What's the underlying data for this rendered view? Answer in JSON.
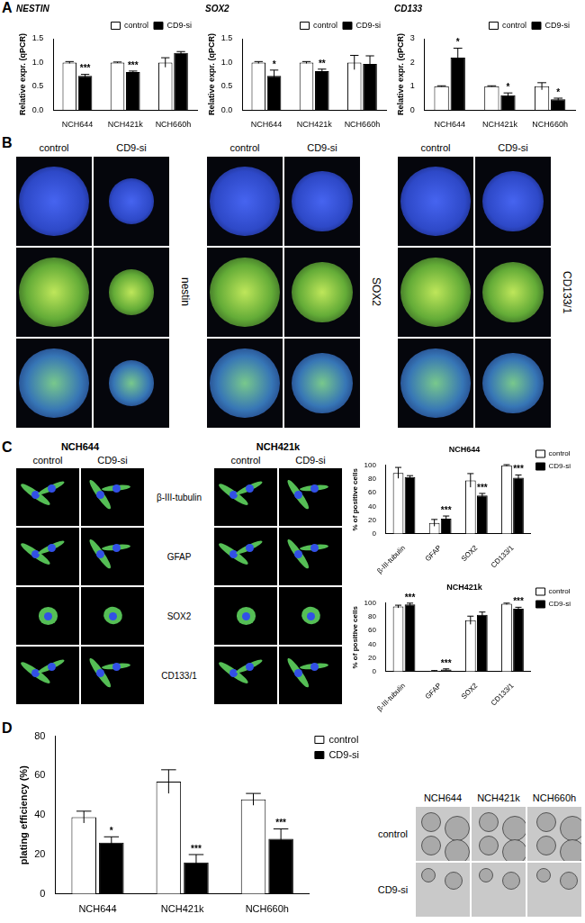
{
  "panel_labels": [
    "A",
    "B",
    "C",
    "D"
  ],
  "chart_data": [
    {
      "type": "bar",
      "title": "NESTIN",
      "y_label": "Relative expr. (qPCR)",
      "categories": [
        "NCH644",
        "NCH421k",
        "NCH660h"
      ],
      "series": [
        {
          "name": "control",
          "color": "#ffffff",
          "values": [
            1.0,
            1.0,
            1.0
          ],
          "errors": [
            0.02,
            0.01,
            0.1
          ],
          "significance": [
            null,
            null,
            null
          ]
        },
        {
          "name": "CD9-si",
          "color": "#000000",
          "values": [
            0.72,
            0.8,
            1.2
          ],
          "errors": [
            0.03,
            0.02,
            0.03
          ],
          "significance": [
            "***",
            "***",
            null
          ]
        }
      ],
      "ylim": [
        0,
        1.5
      ],
      "yticks": [
        {
          "value": 0,
          "label": "0.0"
        },
        {
          "value": 0.5,
          "label": "0.5"
        },
        {
          "value": 1,
          "label": "1.0"
        },
        {
          "value": 1.5,
          "label": "1.5"
        }
      ],
      "grid": false,
      "legend": "top-right"
    },
    {
      "type": "bar",
      "title": "SOX2",
      "y_label": "Relative expr. (qPCR)",
      "categories": [
        "NCH644",
        "NCH421k",
        "NCH660h"
      ],
      "series": [
        {
          "name": "control",
          "color": "#ffffff",
          "values": [
            1.0,
            1.0,
            1.0
          ],
          "errors": [
            0.02,
            0.02,
            0.15
          ],
          "significance": [
            null,
            null,
            null
          ]
        },
        {
          "name": "CD9-si",
          "color": "#000000",
          "values": [
            0.72,
            0.82,
            0.97
          ],
          "errors": [
            0.12,
            0.04,
            0.17
          ],
          "significance": [
            "*",
            "**",
            null
          ]
        }
      ],
      "ylim": [
        0,
        1.5
      ],
      "yticks": [
        {
          "value": 0,
          "label": "0.0"
        },
        {
          "value": 0.5,
          "label": "0.5"
        },
        {
          "value": 1,
          "label": "1.0"
        },
        {
          "value": 1.5,
          "label": "1.5"
        }
      ],
      "grid": false,
      "legend": "top-right"
    },
    {
      "type": "bar",
      "title": "CD133",
      "y_label": "Relative expr. (qPCR)",
      "categories": [
        "NCH644",
        "NCH421k",
        "NCH660h"
      ],
      "series": [
        {
          "name": "control",
          "color": "#ffffff",
          "values": [
            1.0,
            1.0,
            1.0
          ],
          "errors": [
            0.02,
            0.02,
            0.15
          ],
          "significance": [
            null,
            null,
            null
          ]
        },
        {
          "name": "CD9-si",
          "color": "#000000",
          "values": [
            2.2,
            0.62,
            0.45
          ],
          "errors": [
            0.4,
            0.1,
            0.05
          ],
          "significance": [
            "*",
            "*",
            "*"
          ]
        }
      ],
      "ylim": [
        0,
        3
      ],
      "yticks": [
        0,
        1,
        2,
        3
      ],
      "grid": false,
      "legend": "top-right"
    },
    {
      "type": "bar",
      "title": "NCH644",
      "y_label": "% of positive cells",
      "categories": [
        "β-III-tubulin",
        "GFAP",
        "SOX2",
        "CD133/1"
      ],
      "series": [
        {
          "name": "control",
          "color": "#ffffff",
          "values": [
            89,
            16,
            78,
            100
          ],
          "errors": [
            8,
            5,
            10,
            1
          ],
          "significance": [
            null,
            null,
            null,
            null
          ]
        },
        {
          "name": "CD9-si",
          "color": "#000000",
          "values": [
            83,
            22,
            56,
            82
          ],
          "errors": [
            2,
            4,
            3,
            4
          ],
          "significance": [
            null,
            "***",
            "***",
            "***"
          ]
        }
      ],
      "ylim": [
        0,
        100
      ],
      "yticks": [
        0,
        20,
        40,
        60,
        80,
        100
      ],
      "grid": false,
      "legend": "right"
    },
    {
      "type": "bar",
      "title": "NCH421k",
      "y_label": "% of positive cells",
      "categories": [
        "β-III-tubulin",
        "GFAP",
        "SOX2",
        "CD133/1"
      ],
      "series": [
        {
          "name": "control",
          "color": "#ffffff",
          "values": [
            95,
            1,
            75,
            99
          ],
          "errors": [
            2,
            0.5,
            6,
            1
          ],
          "significance": [
            null,
            null,
            null,
            null
          ]
        },
        {
          "name": "CD9-si",
          "color": "#000000",
          "values": [
            98,
            3,
            83,
            92
          ],
          "errors": [
            2,
            1,
            4,
            2
          ],
          "significance": [
            "***",
            "***",
            null,
            "***"
          ]
        }
      ],
      "ylim": [
        0,
        100
      ],
      "yticks": [
        0,
        20,
        40,
        60,
        80,
        100
      ],
      "grid": false,
      "legend": "right"
    },
    {
      "type": "bar",
      "y_label": "plating efficiency (%)",
      "categories": [
        "NCH644",
        "NCH421k",
        "NCH660h"
      ],
      "series": [
        {
          "name": "control",
          "color": "#ffffff",
          "values": [
            39,
            57,
            48
          ],
          "errors": [
            3,
            6,
            3
          ],
          "significance": [
            null,
            null,
            null
          ]
        },
        {
          "name": "CD9-si",
          "color": "#000000",
          "values": [
            26,
            16,
            28
          ],
          "errors": [
            3,
            4,
            5
          ],
          "significance": [
            "*",
            "***",
            "***"
          ]
        }
      ],
      "ylim": [
        0,
        80
      ],
      "yticks": [
        0,
        20,
        40,
        60,
        80
      ],
      "grid": false,
      "legend": "right"
    }
  ],
  "image_panels": {
    "B": {
      "groups": [
        {
          "columns": [
            "control",
            "CD9-si"
          ],
          "label": "nestin"
        },
        {
          "columns": [
            "control",
            "CD9-si"
          ],
          "label": "SOX2"
        },
        {
          "columns": [
            "control",
            "CD9-si"
          ],
          "label": "CD133/1"
        }
      ]
    },
    "C": {
      "groups": [
        {
          "title": "NCH644",
          "columns": [
            "control",
            "CD9-si"
          ]
        },
        {
          "title": "NCH421k",
          "columns": [
            "control",
            "CD9-si"
          ]
        }
      ],
      "rows": [
        "β-III-tubulin",
        "GFAP",
        "SOX2",
        "CD133/1"
      ]
    },
    "D": {
      "columns": [
        "NCH644",
        "NCH421k",
        "NCH660h"
      ],
      "rows": [
        "control",
        "CD9-si"
      ]
    }
  }
}
